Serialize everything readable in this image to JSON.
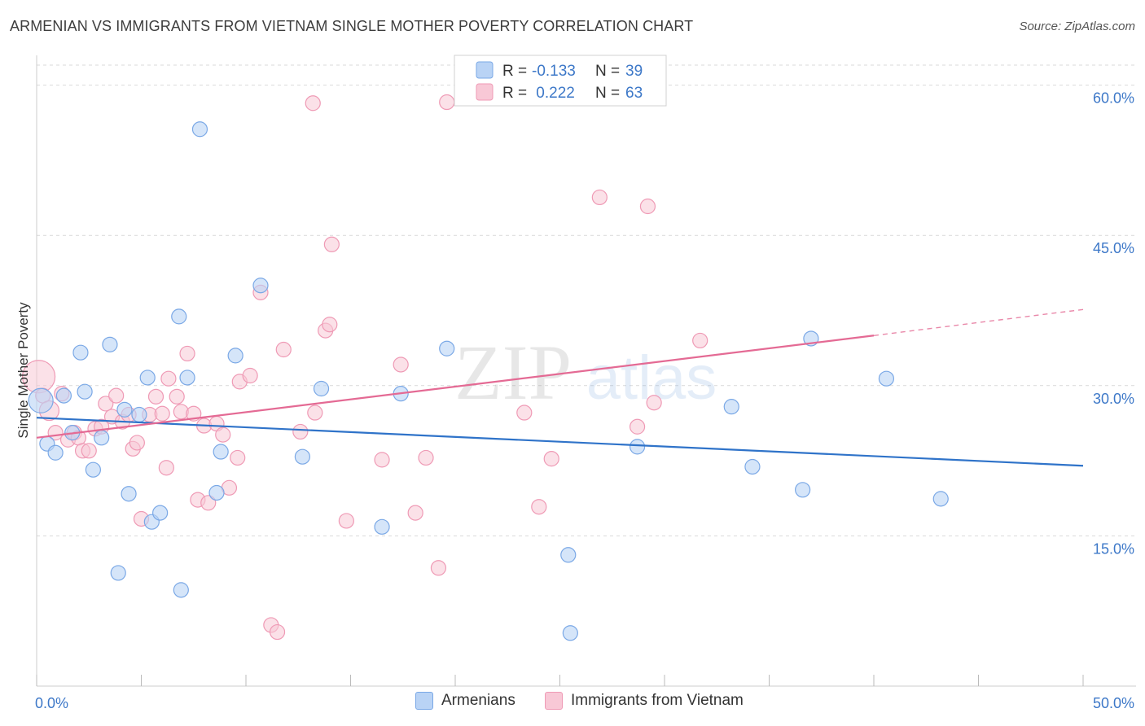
{
  "title": "ARMENIAN VS IMMIGRANTS FROM VIETNAM SINGLE MOTHER POVERTY CORRELATION CHART",
  "source": "Source: ZipAtlas.com",
  "watermark": {
    "zip": "ZIP",
    "atlas": "atlas"
  },
  "colors": {
    "blue_fill": "#b9d3f5",
    "blue_stroke": "#7aa8e6",
    "blue_line": "#2f73c9",
    "pink_fill": "#f8c8d6",
    "pink_stroke": "#ef9ab5",
    "pink_line": "#e46a94",
    "axis_text": "#3d78c8",
    "grid": "#d9d9d9"
  },
  "legend_top": {
    "rows": [
      {
        "r_label": "R =",
        "r_value": "-0.133",
        "n_label": "N =",
        "n_value": "39"
      },
      {
        "r_label": "R =",
        "r_value": " 0.222",
        "n_label": "N =",
        "n_value": "63"
      }
    ]
  },
  "legend_bottom": {
    "series1": "Armenians",
    "series2": "Immigrants from Vietnam"
  },
  "chart_data": {
    "type": "scatter",
    "title": "ARMENIAN VS IMMIGRANTS FROM VIETNAM SINGLE MOTHER POVERTY CORRELATION CHART",
    "xlabel": "",
    "ylabel": "Single Mother Poverty",
    "xlim": [
      0,
      50
    ],
    "ylim": [
      0,
      62
    ],
    "x_tick_labels": [
      "0.0%",
      "50.0%"
    ],
    "y_ticks": [
      15,
      30,
      45,
      60
    ],
    "y_tick_labels": [
      "15.0%",
      "30.0%",
      "45.0%",
      "60.0%"
    ],
    "grid": true,
    "series": [
      {
        "name": "Armenians",
        "color": "#b9d3f5",
        "r": -0.133,
        "n": 39,
        "trend": {
          "x": [
            0,
            50
          ],
          "y": [
            26.8,
            22.0
          ]
        },
        "points": [
          [
            0.2,
            28.5
          ],
          [
            0.5,
            24.2
          ],
          [
            0.9,
            23.3
          ],
          [
            1.3,
            29.0
          ],
          [
            1.7,
            25.3
          ],
          [
            2.1,
            33.3
          ],
          [
            2.3,
            29.4
          ],
          [
            2.7,
            21.6
          ],
          [
            3.1,
            24.8
          ],
          [
            3.5,
            34.1
          ],
          [
            3.9,
            11.3
          ],
          [
            4.2,
            27.6
          ],
          [
            4.4,
            19.2
          ],
          [
            4.9,
            27.1
          ],
          [
            5.3,
            30.8
          ],
          [
            5.5,
            16.4
          ],
          [
            5.9,
            17.3
          ],
          [
            6.8,
            36.9
          ],
          [
            6.9,
            9.6
          ],
          [
            7.2,
            30.8
          ],
          [
            7.8,
            55.6
          ],
          [
            8.6,
            19.3
          ],
          [
            8.8,
            23.4
          ],
          [
            9.5,
            33.0
          ],
          [
            10.7,
            40.0
          ],
          [
            12.7,
            22.9
          ],
          [
            13.6,
            29.7
          ],
          [
            16.5,
            15.9
          ],
          [
            17.4,
            29.2
          ],
          [
            19.6,
            33.7
          ],
          [
            25.4,
            13.1
          ],
          [
            25.5,
            5.3
          ],
          [
            28.7,
            23.9
          ],
          [
            33.2,
            27.9
          ],
          [
            34.2,
            21.9
          ],
          [
            36.6,
            19.6
          ],
          [
            37.0,
            34.7
          ],
          [
            40.6,
            30.7
          ],
          [
            43.2,
            18.7
          ]
        ]
      },
      {
        "name": "Immigrants from Vietnam",
        "color": "#f8c8d6",
        "r": 0.222,
        "n": 63,
        "trend": {
          "x": [
            0,
            40
          ],
          "y": [
            24.8,
            35.0
          ],
          "dashed_to": {
            "x": 50,
            "y": 37.6
          }
        },
        "points": [
          [
            0.1,
            30.9
          ],
          [
            0.3,
            29.0
          ],
          [
            0.6,
            27.5
          ],
          [
            0.9,
            25.3
          ],
          [
            1.2,
            29.2
          ],
          [
            1.5,
            24.6
          ],
          [
            1.8,
            25.3
          ],
          [
            2.0,
            24.8
          ],
          [
            2.2,
            23.5
          ],
          [
            2.5,
            23.5
          ],
          [
            2.8,
            25.7
          ],
          [
            3.1,
            25.9
          ],
          [
            3.3,
            28.2
          ],
          [
            3.6,
            26.9
          ],
          [
            3.8,
            29.0
          ],
          [
            4.1,
            26.4
          ],
          [
            4.4,
            27.1
          ],
          [
            4.6,
            23.7
          ],
          [
            4.8,
            24.3
          ],
          [
            5.0,
            16.7
          ],
          [
            5.4,
            27.1
          ],
          [
            5.7,
            28.9
          ],
          [
            6.0,
            27.2
          ],
          [
            6.2,
            21.8
          ],
          [
            6.3,
            30.7
          ],
          [
            6.7,
            28.9
          ],
          [
            6.9,
            27.4
          ],
          [
            7.2,
            33.2
          ],
          [
            7.5,
            27.2
          ],
          [
            7.7,
            18.6
          ],
          [
            8.0,
            26.0
          ],
          [
            8.2,
            18.3
          ],
          [
            8.6,
            26.2
          ],
          [
            8.9,
            25.1
          ],
          [
            9.2,
            19.8
          ],
          [
            9.6,
            22.8
          ],
          [
            9.7,
            30.4
          ],
          [
            10.2,
            31.0
          ],
          [
            10.7,
            39.3
          ],
          [
            11.2,
            6.1
          ],
          [
            11.5,
            5.4
          ],
          [
            11.8,
            33.6
          ],
          [
            12.6,
            25.4
          ],
          [
            13.2,
            58.2
          ],
          [
            13.3,
            27.3
          ],
          [
            13.8,
            35.5
          ],
          [
            14.0,
            36.1
          ],
          [
            14.1,
            44.1
          ],
          [
            14.8,
            16.5
          ],
          [
            16.5,
            22.6
          ],
          [
            17.4,
            32.1
          ],
          [
            18.1,
            17.3
          ],
          [
            18.6,
            22.8
          ],
          [
            19.2,
            11.8
          ],
          [
            19.6,
            58.3
          ],
          [
            23.3,
            27.3
          ],
          [
            24.0,
            17.9
          ],
          [
            24.6,
            22.7
          ],
          [
            26.9,
            48.8
          ],
          [
            28.7,
            25.9
          ],
          [
            29.2,
            47.9
          ],
          [
            29.5,
            28.3
          ],
          [
            31.7,
            34.5
          ]
        ]
      }
    ]
  }
}
